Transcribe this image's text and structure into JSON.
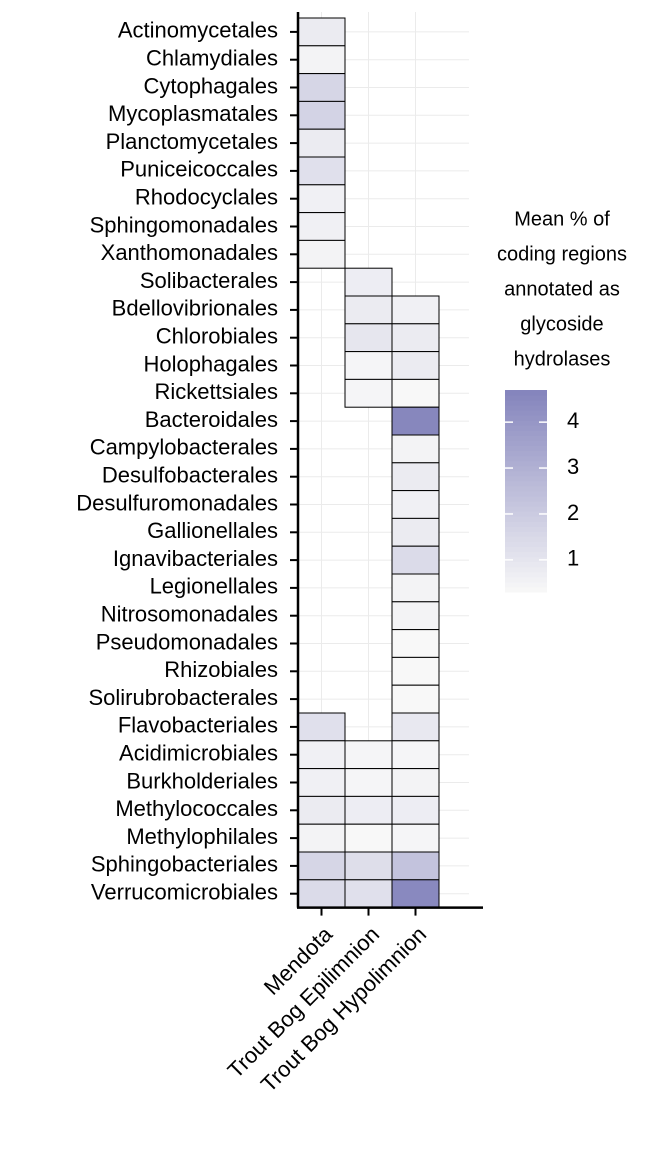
{
  "chart_data": {
    "type": "heatmap",
    "x": [
      "Mendota",
      "Trout Bog Epilimnion",
      "Trout Bog Hypolimnion"
    ],
    "y": [
      "Actinomycetales",
      "Chlamydiales",
      "Cytophagales",
      "Mycoplasmatales",
      "Planctomycetales",
      "Puniceicoccales",
      "Rhodocyclales",
      "Sphingomonadales",
      "Xanthomonadales",
      "Solibacterales",
      "Bdellovibrionales",
      "Chlorobiales",
      "Holophagales",
      "Rickettsiales",
      "Bacteroidales",
      "Campylobacterales",
      "Desulfobacterales",
      "Desulfuromonadales",
      "Gallionellales",
      "Ignavibacteriales",
      "Legionellales",
      "Nitrosomonadales",
      "Pseudomonadales",
      "Rhizobiales",
      "Solirubrobacterales",
      "Flavobacteriales",
      "Acidimicrobiales",
      "Burkholderiales",
      "Methylococcales",
      "Methylophilales",
      "Sphingobacteriales",
      "Verrucomicrobiales"
    ],
    "values": [
      [
        0.8,
        null,
        null
      ],
      [
        0.5,
        null,
        null
      ],
      [
        1.6,
        null,
        null
      ],
      [
        1.7,
        null,
        null
      ],
      [
        0.8,
        null,
        null
      ],
      [
        1.2,
        null,
        null
      ],
      [
        0.6,
        null,
        null
      ],
      [
        0.6,
        null,
        null
      ],
      [
        0.5,
        null,
        null
      ],
      [
        null,
        0.7,
        null
      ],
      [
        null,
        0.8,
        0.6
      ],
      [
        null,
        1.0,
        0.8
      ],
      [
        null,
        0.4,
        0.8
      ],
      [
        null,
        0.4,
        0.3
      ],
      [
        null,
        null,
        4.6
      ],
      [
        null,
        null,
        0.5
      ],
      [
        null,
        null,
        0.8
      ],
      [
        null,
        null,
        0.6
      ],
      [
        null,
        null,
        0.8
      ],
      [
        null,
        null,
        1.4
      ],
      [
        null,
        null,
        0.5
      ],
      [
        null,
        null,
        0.5
      ],
      [
        null,
        null,
        0.3
      ],
      [
        null,
        null,
        0.3
      ],
      [
        null,
        null,
        0.3
      ],
      [
        1.2,
        null,
        0.9
      ],
      [
        0.6,
        0.4,
        0.4
      ],
      [
        0.6,
        0.4,
        0.5
      ],
      [
        0.8,
        0.7,
        0.7
      ],
      [
        0.5,
        0.3,
        0.4
      ],
      [
        1.6,
        1.3,
        2.3
      ],
      [
        1.4,
        1.2,
        4.5
      ]
    ],
    "legend_title": [
      "Mean % of",
      "coding regions",
      "annotated as",
      "glycoside",
      "hydrolases"
    ],
    "clim": [
      0.3,
      4.7
    ],
    "cticks": [
      1,
      2,
      3,
      4
    ],
    "colors": [
      "#f8f8f8",
      "#8484bc"
    ],
    "grid": true
  }
}
